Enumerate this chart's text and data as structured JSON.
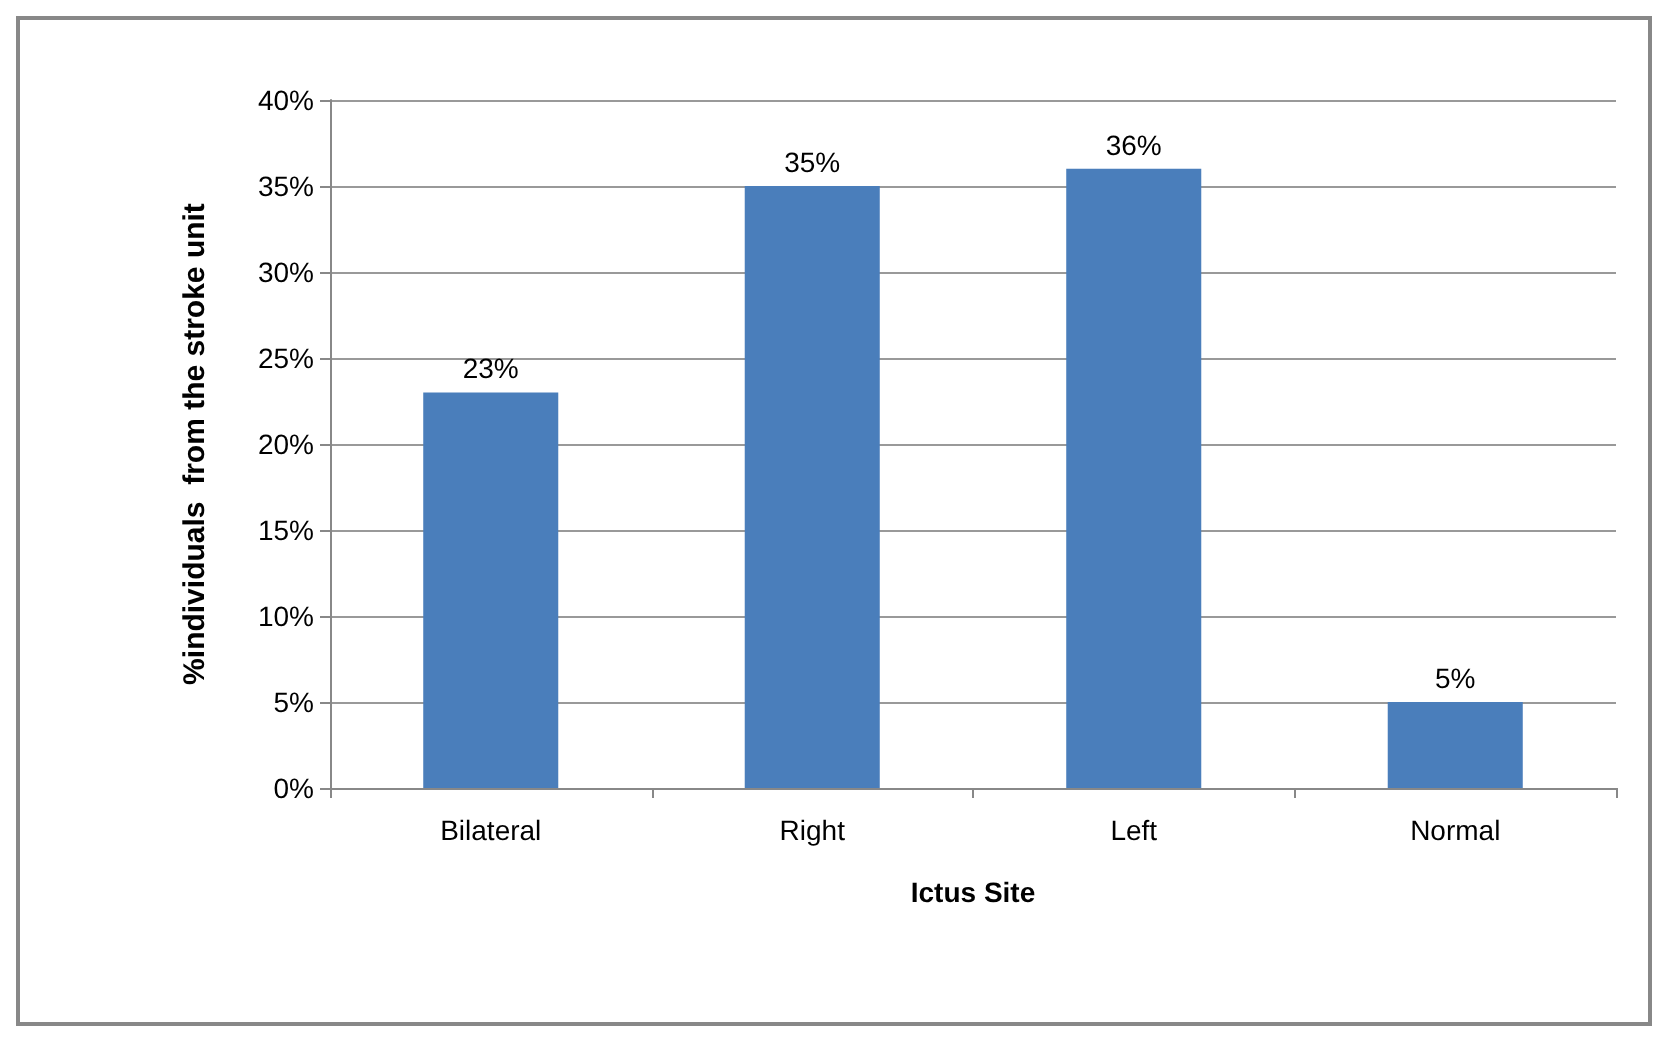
{
  "chart_data": {
    "type": "bar",
    "xlabel": "Ictus Site",
    "ylabel": "%individuals  from the stroke unit",
    "categories": [
      "Bilateral",
      "Right",
      "Left",
      "Normal"
    ],
    "values": [
      23,
      35,
      36,
      5
    ],
    "value_labels": [
      "23%",
      "35%",
      "36%",
      "5%"
    ],
    "color": "#4a7ebb",
    "ylim": [
      0,
      40
    ],
    "yticks": [
      {
        "value": 0,
        "label": "0%"
      },
      {
        "value": 5,
        "label": "5%"
      },
      {
        "value": 10,
        "label": "10%"
      },
      {
        "value": 15,
        "label": "15%"
      },
      {
        "value": 20,
        "label": "20%"
      },
      {
        "value": 25,
        "label": "25%"
      },
      {
        "value": 30,
        "label": "30%"
      },
      {
        "value": 35,
        "label": "35%"
      },
      {
        "value": 40,
        "label": "40%"
      }
    ],
    "grid": "y"
  }
}
